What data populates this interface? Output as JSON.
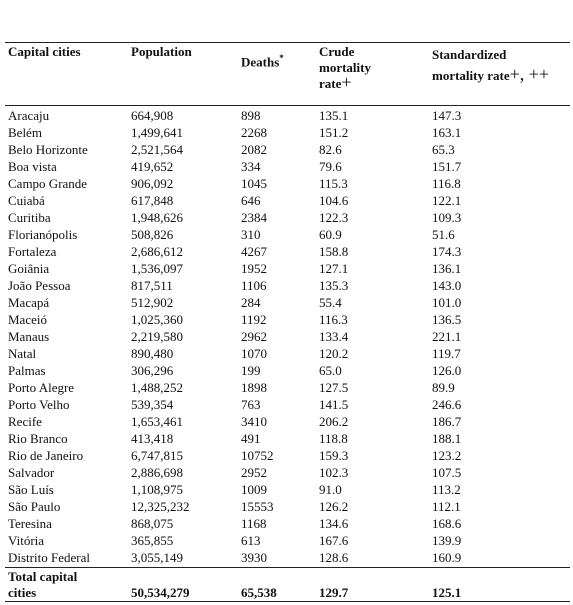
{
  "table": {
    "header": {
      "capital_cities": "Capital cities",
      "population": "Population",
      "deaths": "Deaths",
      "deaths_note": "*",
      "crude": "Crude mortality rate",
      "crude_note": "+",
      "standardized": "Standardized mortality rate",
      "standardized_note": "+, ++"
    },
    "rows": [
      [
        "Aracaju",
        "664,908",
        "898",
        "135.1",
        "147.3"
      ],
      [
        "Belém",
        "1,499,641",
        "2268",
        "151.2",
        "163.1"
      ],
      [
        "Belo Horizonte",
        "2,521,564",
        "2082",
        "82.6",
        "65.3"
      ],
      [
        "Boa vista",
        "419,652",
        "334",
        "79.6",
        "151.7"
      ],
      [
        "Campo Grande",
        "906,092",
        "1045",
        "115.3",
        "116.8"
      ],
      [
        "Cuiabá",
        "617,848",
        "646",
        "104.6",
        "122.1"
      ],
      [
        "Curitiba",
        "1,948,626",
        "2384",
        "122.3",
        "109.3"
      ],
      [
        "Florianópolis",
        "508,826",
        "310",
        "60.9",
        "51.6"
      ],
      [
        "Fortaleza",
        "2,686,612",
        "4267",
        "158.8",
        "174.3"
      ],
      [
        "Goiânia",
        "1,536,097",
        "1952",
        "127.1",
        "136.1"
      ],
      [
        "João Pessoa",
        "817,511",
        "1106",
        "135.3",
        "143.0"
      ],
      [
        "Macapá",
        "512,902",
        "284",
        "55.4",
        "101.0"
      ],
      [
        "Maceió",
        "1,025,360",
        "1192",
        "116.3",
        "136.5"
      ],
      [
        "Manaus",
        "2,219,580",
        "2962",
        "133.4",
        "221.1"
      ],
      [
        "Natal",
        "890,480",
        "1070",
        "120.2",
        "119.7"
      ],
      [
        "Palmas",
        "306,296",
        "199",
        "65.0",
        "126.0"
      ],
      [
        "Porto Alegre",
        "1,488,252",
        "1898",
        "127.5",
        "89.9"
      ],
      [
        "Porto Velho",
        "539,354",
        "763",
        "141.5",
        "246.6"
      ],
      [
        "Recife",
        "1,653,461",
        "3410",
        "206.2",
        "186.7"
      ],
      [
        "Rio Branco",
        "413,418",
        "491",
        "118.8",
        "188.1"
      ],
      [
        "Rio de Janeiro",
        "6,747,815",
        "10752",
        "159.3",
        "123.2"
      ],
      [
        "Salvador",
        "2,886,698",
        "2952",
        "102.3",
        "107.5"
      ],
      [
        "São Luís",
        "1,108,975",
        "1009",
        "91.0",
        "113.2"
      ],
      [
        "São Paulo",
        "12,325,232",
        "15553",
        "126.2",
        "112.1"
      ],
      [
        "Teresina",
        "868,075",
        "1168",
        "134.6",
        "168.6"
      ],
      [
        "Vitória",
        "365,855",
        "613",
        "167.6",
        "139.9"
      ],
      [
        "Distrito Federal",
        "3,055,149",
        "3930",
        "128.6",
        "160.9"
      ]
    ],
    "total": [
      "Total capital cities",
      "50,534,279",
      "65,538",
      "129.7",
      "125.1"
    ]
  }
}
